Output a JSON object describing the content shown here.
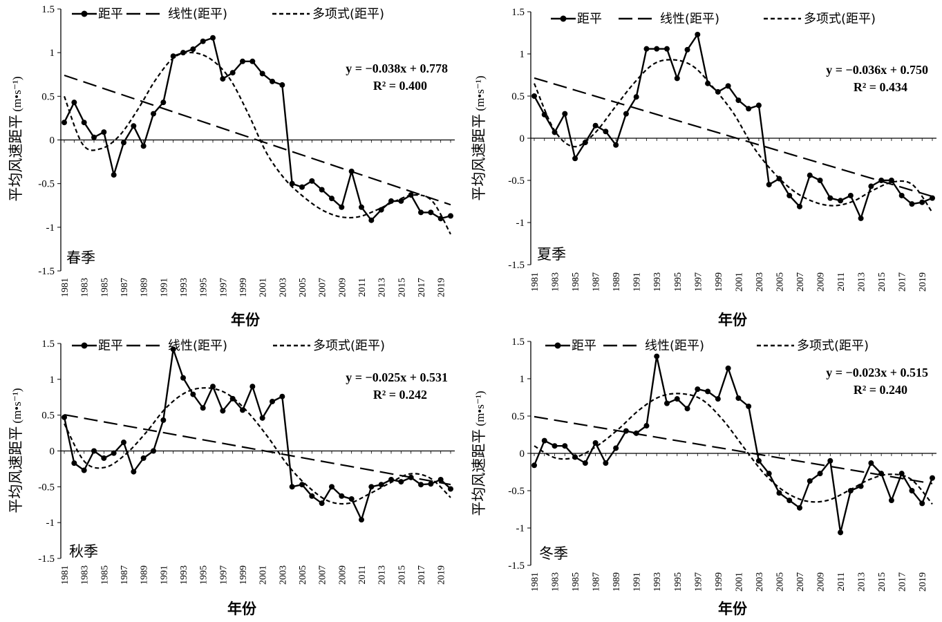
{
  "chart_data": [
    {
      "type": "line",
      "season": "春季",
      "xlabel": "年份",
      "ylabel": "平均风速距平",
      "ylabel_unit": "(m•s⁻¹)",
      "ylim": [
        -1.5,
        1.5
      ],
      "yticks": [
        "1.5",
        "1",
        "0.5",
        "0",
        "-0.5",
        "-1",
        "-1.5"
      ],
      "x_start": 1981,
      "x_end": 2020,
      "xtick_labels": [
        "1981",
        "1983",
        "1985",
        "1987",
        "1989",
        "1991",
        "1993",
        "1995",
        "1997",
        "1999",
        "2001",
        "2003",
        "2005",
        "2007",
        "2009",
        "2011",
        "2013",
        "2015",
        "2017",
        "2019"
      ],
      "legend": [
        "距平",
        "线性(距平)",
        "多项式(距平)"
      ],
      "equation": "y = −0.038x +  0.778",
      "r2": "R² = 0.400",
      "trend": {
        "slope": -0.038,
        "intercept": 0.778
      },
      "poly": [
        0.5,
        -0.05,
        -0.1,
        0.05,
        0.35,
        0.7,
        0.95,
        1.0,
        0.92,
        0.7,
        0.3,
        -0.15,
        -0.45,
        -0.65,
        -0.8,
        -0.88,
        -0.88,
        -0.8,
        -0.7,
        -0.63,
        -0.7,
        -1.08
      ],
      "series": [
        {
          "name": "距平",
          "values": [
            0.2,
            0.43,
            0.2,
            0.03,
            0.09,
            -0.4,
            -0.03,
            0.16,
            -0.07,
            0.3,
            0.43,
            0.96,
            1.0,
            1.04,
            1.13,
            1.17,
            0.7,
            0.77,
            0.9,
            0.9,
            0.76,
            0.67,
            0.63,
            -0.5,
            -0.54,
            -0.47,
            -0.57,
            -0.67,
            -0.77,
            -0.36,
            -0.77,
            -0.92,
            -0.8,
            -0.7,
            -0.7,
            -0.63,
            -0.83,
            -0.83,
            -0.9,
            -0.87
          ]
        }
      ]
    },
    {
      "type": "line",
      "season": "夏季",
      "xlabel": "年份",
      "ylabel": "平均风速距平",
      "ylabel_unit": "(m•s⁻¹)",
      "ylim": [
        -1.5,
        1.5
      ],
      "yticks": [
        "1.5",
        "1",
        "0.5",
        "0",
        "-0.5",
        "-1",
        "-1.5"
      ],
      "x_start": 1981,
      "x_end": 2020,
      "xtick_labels": [
        "1981",
        "1983",
        "1985",
        "1987",
        "1989",
        "1991",
        "1993",
        "1995",
        "1997",
        "1999",
        "2001",
        "2003",
        "2005",
        "2007",
        "2009",
        "2011",
        "2013",
        "2015",
        "2017",
        "2019"
      ],
      "legend": [
        "距平",
        "线性(距平)",
        "多项式(距平)"
      ],
      "equation": "y = −0.036x +  0.750",
      "r2": "R² = 0.434",
      "trend": {
        "slope": -0.036,
        "intercept": 0.75
      },
      "poly": [
        0.65,
        0.1,
        -0.1,
        0.05,
        0.35,
        0.65,
        0.88,
        0.93,
        0.85,
        0.6,
        0.3,
        -0.1,
        -0.4,
        -0.62,
        -0.75,
        -0.8,
        -0.75,
        -0.62,
        -0.52,
        -0.55,
        -0.88
      ],
      "series": [
        {
          "name": "距平",
          "values": [
            0.5,
            0.28,
            0.07,
            0.29,
            -0.24,
            -0.05,
            0.15,
            0.08,
            -0.08,
            0.29,
            0.49,
            1.06,
            1.06,
            1.06,
            0.71,
            1.05,
            1.23,
            0.65,
            0.55,
            0.62,
            0.45,
            0.35,
            0.39,
            -0.55,
            -0.48,
            -0.68,
            -0.81,
            -0.44,
            -0.5,
            -0.71,
            -0.74,
            -0.68,
            -0.95,
            -0.57,
            -0.5,
            -0.5,
            -0.68,
            -0.78,
            -0.76,
            -0.71
          ]
        }
      ]
    },
    {
      "type": "line",
      "season": "秋季",
      "xlabel": "年份",
      "ylabel": "平均风速距平",
      "ylabel_unit": "(m•s⁻¹)",
      "ylim": [
        -1.5,
        1.5
      ],
      "yticks": [
        "1.5",
        "1",
        "0.5",
        "0",
        "-0.5",
        "-1",
        "-1.5"
      ],
      "x_start": 1981,
      "x_end": 2020,
      "xtick_labels": [
        "1981",
        "1983",
        "1985",
        "1987",
        "1989",
        "1991",
        "1993",
        "1995",
        "1997",
        "1999",
        "2001",
        "2003",
        "2005",
        "2007",
        "2009",
        "2011",
        "2013",
        "2015",
        "2017",
        "2019"
      ],
      "legend": [
        "距平",
        "线性(距平)",
        "多项式(距平)"
      ],
      "equation": "y = −0.025x +  0.531",
      "r2": "R² = 0.242",
      "trend": {
        "slope": -0.025,
        "intercept": 0.531
      },
      "poly": [
        0.38,
        -0.15,
        -0.23,
        -0.05,
        0.25,
        0.6,
        0.82,
        0.88,
        0.8,
        0.55,
        0.2,
        -0.2,
        -0.5,
        -0.7,
        -0.73,
        -0.6,
        -0.45,
        -0.32,
        -0.38,
        -0.65
      ],
      "series": [
        {
          "name": "距平",
          "values": [
            0.47,
            -0.17,
            -0.27,
            0.0,
            -0.1,
            -0.03,
            0.12,
            -0.29,
            -0.1,
            0.0,
            0.43,
            1.42,
            1.02,
            0.79,
            0.6,
            0.9,
            0.56,
            0.73,
            0.57,
            0.9,
            0.46,
            0.69,
            0.76,
            -0.5,
            -0.47,
            -0.63,
            -0.73,
            -0.5,
            -0.63,
            -0.67,
            -0.96,
            -0.5,
            -0.47,
            -0.4,
            -0.43,
            -0.37,
            -0.47,
            -0.46,
            -0.4,
            -0.53
          ]
        }
      ]
    },
    {
      "type": "line",
      "season": "冬季",
      "xlabel": "年份",
      "ylabel": "平均风速距平",
      "ylabel_unit": "(m•s⁻¹)",
      "ylim": [
        -1.5,
        1.5
      ],
      "yticks": [
        "1.5",
        "1",
        "0.5",
        "0",
        "-0.5",
        "-1",
        "-1.5"
      ],
      "x_start": 1981,
      "x_end": 2020,
      "xtick_labels": [
        "1981",
        "1983",
        "1985",
        "1987",
        "1989",
        "1991",
        "1993",
        "1995",
        "1997",
        "1999",
        "2001",
        "2003",
        "2005",
        "2007",
        "2009",
        "2011",
        "2013",
        "2015",
        "2017",
        "2019"
      ],
      "legend": [
        "距平",
        "线性(距平)",
        "多项式(距平)"
      ],
      "equation": "y = −0.023x +  0.515",
      "r2": "R² = 0.240",
      "trend": {
        "slope": -0.023,
        "intercept": 0.515
      },
      "poly": [
        0.1,
        -0.06,
        -0.05,
        0.1,
        0.32,
        0.58,
        0.76,
        0.8,
        0.72,
        0.45,
        0.08,
        -0.28,
        -0.52,
        -0.64,
        -0.63,
        -0.5,
        -0.35,
        -0.28,
        -0.35,
        -0.68
      ],
      "series": [
        {
          "name": "距平",
          "values": [
            -0.16,
            0.17,
            0.1,
            0.1,
            -0.05,
            -0.13,
            0.14,
            -0.13,
            0.07,
            0.3,
            0.27,
            0.37,
            1.3,
            0.67,
            0.73,
            0.6,
            0.86,
            0.83,
            0.73,
            1.14,
            0.74,
            0.63,
            -0.1,
            -0.27,
            -0.53,
            -0.63,
            -0.73,
            -0.37,
            -0.27,
            -0.1,
            -1.06,
            -0.5,
            -0.44,
            -0.13,
            -0.27,
            -0.63,
            -0.27,
            -0.5,
            -0.67,
            -0.33
          ]
        }
      ]
    }
  ]
}
